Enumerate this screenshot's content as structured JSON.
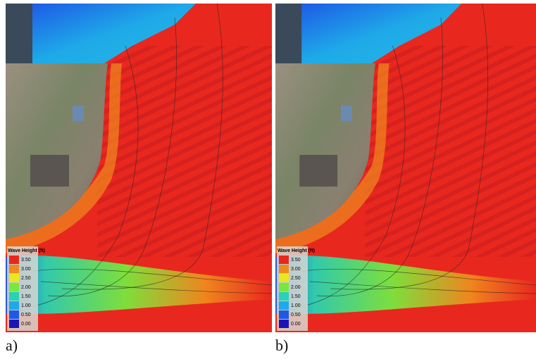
{
  "panels": [
    {
      "label": "a)",
      "legend": {
        "title": "Wave Height (ft)",
        "labels": [
          "3.50",
          "3.00",
          "2.50",
          "2.00",
          "1.50",
          "1.00",
          "0.50",
          "0.00"
        ]
      }
    },
    {
      "label": "b)",
      "legend": {
        "title": "Wave Height (ft)",
        "labels": [
          "3.50",
          "3.00",
          "2.50",
          "2.00",
          "1.50",
          "1.00",
          "0.50",
          "0.00"
        ]
      }
    }
  ],
  "legend_colors": [
    "#e8281e",
    "#f08a1e",
    "#e8e81e",
    "#78e83c",
    "#28d2b4",
    "#1eaae8",
    "#1e5ae6",
    "#1e14b4"
  ]
}
